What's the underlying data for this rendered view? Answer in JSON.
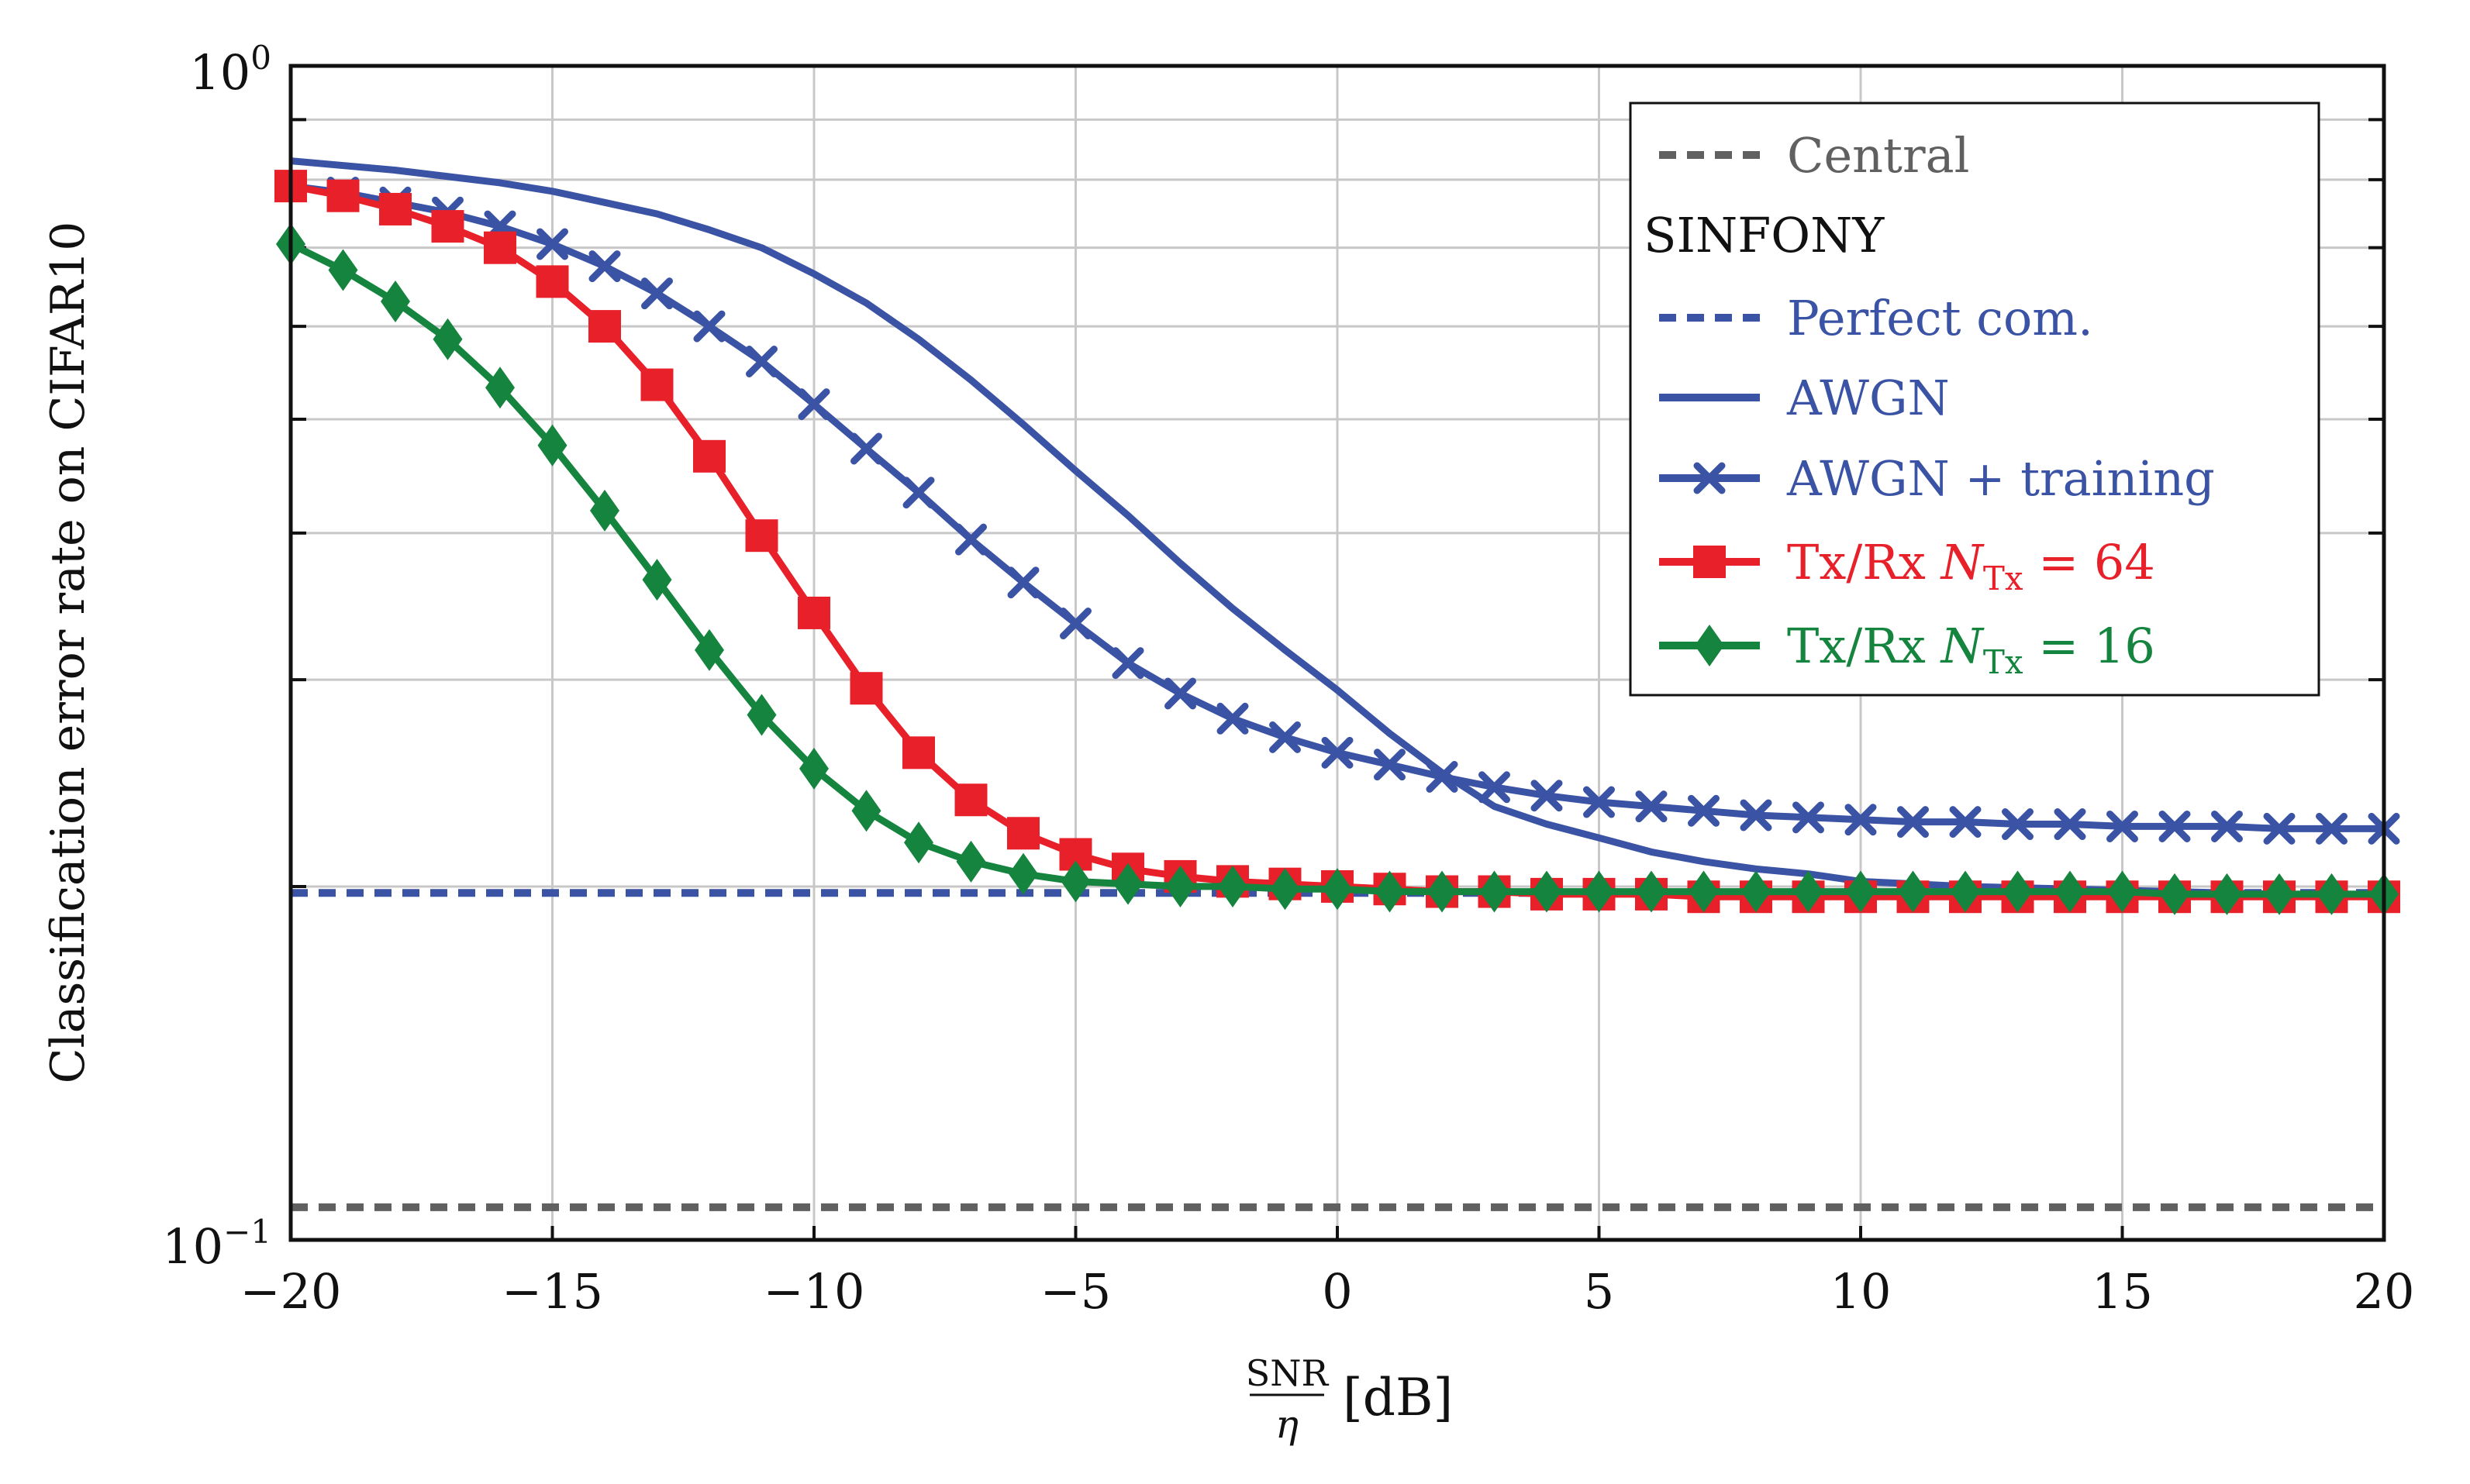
{
  "chart_data": {
    "type": "line",
    "ylabel": "Classification error rate on CIFAR10",
    "xlabel": {
      "num": "SNR",
      "den": "η",
      "unit": "[dB]"
    },
    "xlim": [
      -20,
      20
    ],
    "ylim": [
      0.1,
      1.0
    ],
    "yscale": "log",
    "grid": true,
    "legend_position": "top-right",
    "x_ticks": [
      -20,
      -15,
      -10,
      -5,
      0,
      5,
      10,
      15,
      20
    ],
    "x_tick_labels": [
      "−20",
      "−15",
      "−10",
      "−5",
      "0",
      "5",
      "10",
      "15",
      "20"
    ],
    "y_major_ticks": [
      {
        "value": 1.0,
        "base": "10",
        "exp": "0"
      },
      {
        "value": 0.1,
        "base": "10",
        "exp": "−1"
      }
    ],
    "y_minor_ticks": [
      0.2,
      0.3,
      0.4,
      0.5,
      0.6,
      0.7,
      0.8,
      0.9
    ],
    "legend_group_title": "SINFONY",
    "series": [
      {
        "name": "Central",
        "label": "Central",
        "color": "#606060",
        "style": "dashed",
        "marker": "none",
        "x": [
          -20,
          20
        ],
        "y": [
          0.1066,
          0.1066
        ]
      },
      {
        "name": "Perfect com.",
        "label": "Perfect com.",
        "color": "#3a53a4",
        "style": "dashed",
        "marker": "none",
        "x": [
          -20,
          20
        ],
        "y": [
          0.1975,
          0.1975
        ]
      },
      {
        "name": "AWGN",
        "label": "AWGN",
        "color": "#3a53a4",
        "style": "solid",
        "marker": "none",
        "x": [
          -20,
          -18,
          -16,
          -15,
          -14,
          -13,
          -12,
          -11,
          -10,
          -9,
          -8,
          -7,
          -6,
          -5,
          -4,
          -3,
          -2,
          -1,
          0,
          1,
          2,
          3,
          4,
          5,
          6,
          7,
          8,
          9,
          10,
          12,
          14,
          16,
          18,
          20
        ],
        "y": [
          0.83,
          0.815,
          0.795,
          0.782,
          0.765,
          0.748,
          0.725,
          0.7,
          0.665,
          0.628,
          0.585,
          0.54,
          0.495,
          0.452,
          0.414,
          0.377,
          0.345,
          0.318,
          0.294,
          0.27,
          0.25,
          0.234,
          0.226,
          0.22,
          0.214,
          0.21,
          0.207,
          0.205,
          0.202,
          0.2,
          0.199,
          0.198,
          0.197,
          0.197
        ]
      },
      {
        "name": "AWGN + training",
        "label": "AWGN + training",
        "color": "#3a53a4",
        "style": "solid",
        "marker": "x",
        "x": [
          -20,
          -19,
          -18,
          -17,
          -16,
          -15,
          -14,
          -13,
          -12,
          -11,
          -10,
          -9,
          -8,
          -7,
          -6,
          -5,
          -4,
          -3,
          -2,
          -1,
          0,
          1,
          2,
          3,
          4,
          5,
          6,
          7,
          8,
          9,
          10,
          11,
          12,
          13,
          14,
          15,
          16,
          17,
          18,
          19,
          20
        ],
        "y": [
          0.79,
          0.78,
          0.765,
          0.75,
          0.73,
          0.705,
          0.675,
          0.64,
          0.6,
          0.56,
          0.515,
          0.472,
          0.433,
          0.395,
          0.363,
          0.335,
          0.31,
          0.292,
          0.278,
          0.268,
          0.26,
          0.254,
          0.248,
          0.243,
          0.239,
          0.236,
          0.234,
          0.232,
          0.23,
          0.229,
          0.228,
          0.227,
          0.227,
          0.226,
          0.226,
          0.225,
          0.225,
          0.225,
          0.224,
          0.224,
          0.224
        ]
      },
      {
        "name": "Tx/Rx NTx = 64",
        "label": "Tx/Rx ",
        "math": {
          "var": "N",
          "sub": "Tx",
          "rhs": " = 64"
        },
        "color": "#e8202a",
        "style": "solid",
        "marker": "square",
        "x": [
          -20,
          -19,
          -18,
          -17,
          -16,
          -15,
          -14,
          -13,
          -12,
          -11,
          -10,
          -9,
          -8,
          -7,
          -6,
          -5,
          -4,
          -3,
          -2,
          -1,
          0,
          1,
          2,
          3,
          4,
          5,
          6,
          7,
          8,
          9,
          10,
          11,
          12,
          13,
          14,
          15,
          16,
          17,
          18,
          19,
          20
        ],
        "y": [
          0.79,
          0.775,
          0.755,
          0.73,
          0.7,
          0.655,
          0.6,
          0.535,
          0.465,
          0.398,
          0.342,
          0.295,
          0.26,
          0.237,
          0.222,
          0.213,
          0.207,
          0.204,
          0.202,
          0.201,
          0.2,
          0.199,
          0.198,
          0.198,
          0.197,
          0.197,
          0.197,
          0.196,
          0.196,
          0.196,
          0.196,
          0.196,
          0.196,
          0.196,
          0.196,
          0.196,
          0.196,
          0.196,
          0.196,
          0.196,
          0.196
        ]
      },
      {
        "name": "Tx/Rx NTx = 16",
        "label": "Tx/Rx ",
        "math": {
          "var": "N",
          "sub": "Tx",
          "rhs": " = 16"
        },
        "color": "#15843e",
        "style": "solid",
        "marker": "diamond",
        "x": [
          -20,
          -19,
          -18,
          -17,
          -16,
          -15,
          -14,
          -13,
          -12,
          -11,
          -10,
          -9,
          -8,
          -7,
          -6,
          -5,
          -4,
          -3,
          -2,
          -1,
          0,
          1,
          2,
          3,
          4,
          5,
          6,
          7,
          8,
          9,
          10,
          11,
          12,
          13,
          14,
          15,
          16,
          17,
          18,
          19,
          20
        ],
        "y": [
          0.705,
          0.67,
          0.63,
          0.585,
          0.532,
          0.475,
          0.418,
          0.365,
          0.318,
          0.28,
          0.252,
          0.232,
          0.218,
          0.21,
          0.205,
          0.202,
          0.201,
          0.2,
          0.2,
          0.199,
          0.199,
          0.198,
          0.198,
          0.198,
          0.198,
          0.198,
          0.198,
          0.198,
          0.198,
          0.198,
          0.198,
          0.198,
          0.198,
          0.198,
          0.198,
          0.198,
          0.197,
          0.197,
          0.197,
          0.197,
          0.197
        ]
      }
    ]
  }
}
